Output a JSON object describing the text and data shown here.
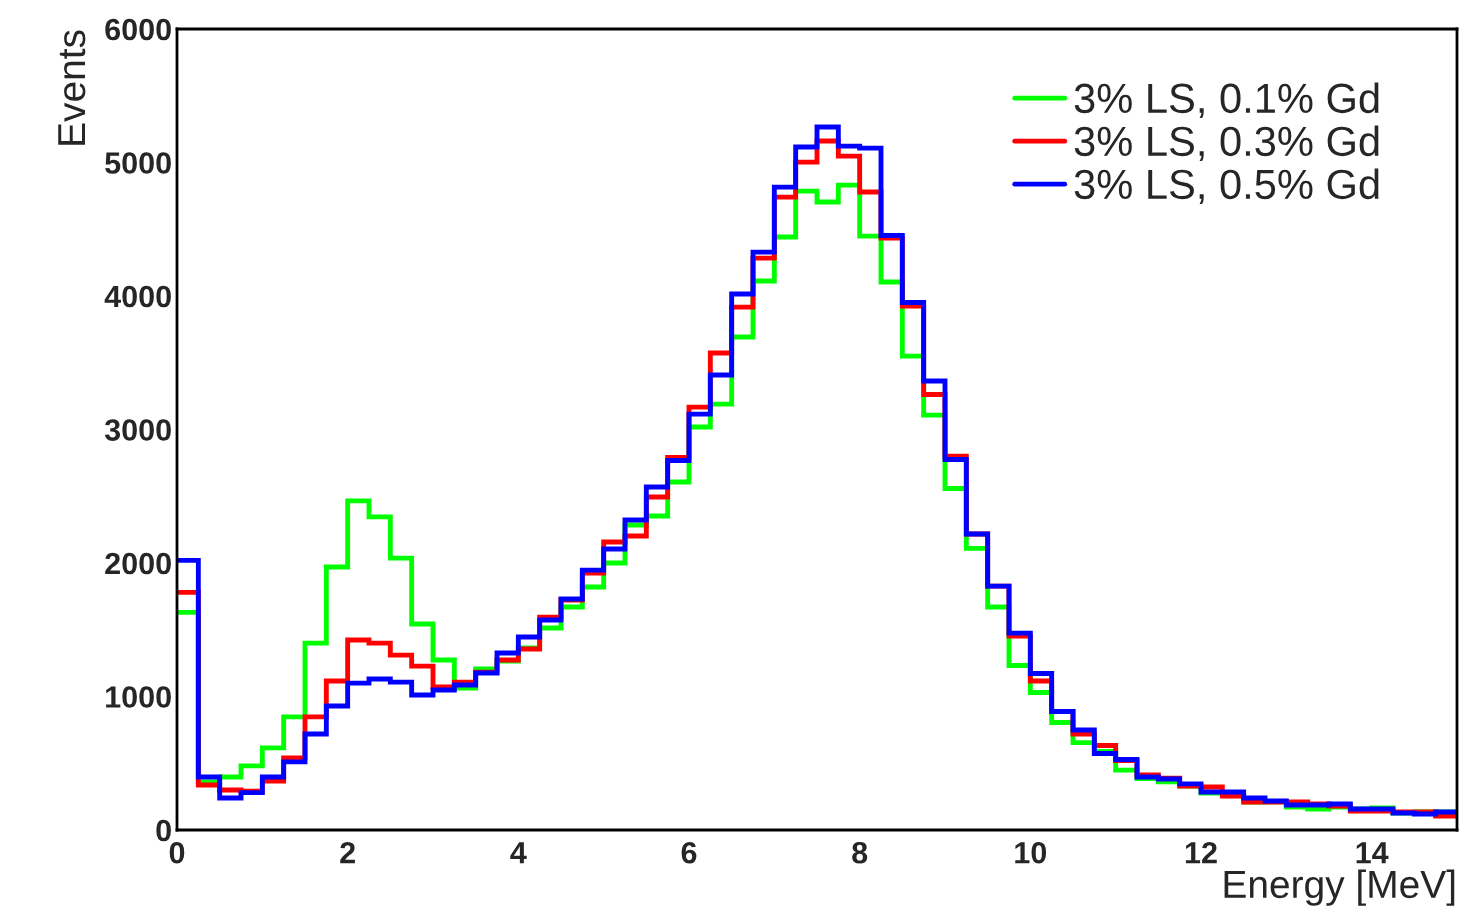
{
  "chart_data": {
    "type": "histogram",
    "xlabel": "Energy [MeV]",
    "ylabel": "Events",
    "bins": [
      0,
      0.25,
      0.5,
      0.75,
      1,
      1.25,
      1.5,
      1.75,
      2,
      2.25,
      2.5,
      2.75,
      3,
      3.25,
      3.5,
      3.75,
      4,
      4.25,
      4.5,
      4.75,
      5,
      5.25,
      5.5,
      5.75,
      6,
      6.25,
      6.5,
      6.75,
      7,
      7.25,
      7.5,
      7.75,
      8,
      8.25,
      8.5,
      8.75,
      9,
      9.25,
      9.5,
      9.75,
      10,
      10.25,
      10.5,
      10.75,
      11,
      11.25,
      11.5,
      11.75,
      12,
      12.25,
      12.5,
      12.75,
      13,
      13.25,
      13.5,
      13.75,
      14,
      14.25,
      14.5,
      14.75,
      15
    ],
    "series": [
      {
        "name": "3% LS, 0.1% Gd",
        "color": "#00ff00",
        "values": [
          1630,
          360,
          397,
          480,
          615,
          847,
          1400,
          1970,
          2465,
          2345,
          2037,
          1543,
          1273,
          1063,
          1206,
          1266,
          1363,
          1513,
          1670,
          1820,
          2000,
          2285,
          2352,
          2607,
          3019,
          3190,
          3693,
          4112,
          4442,
          4786,
          4704,
          4831,
          4449,
          4105,
          3550,
          3108,
          2558,
          2110,
          1670,
          1232,
          1030,
          805,
          655,
          588,
          449,
          385,
          360,
          330,
          277,
          262,
          210,
          212,
          172,
          157,
          172,
          157,
          165,
          127,
          135,
          135
        ]
      },
      {
        "name": "3% LS, 0.3% Gd",
        "color": "#ff0000",
        "values": [
          1780,
          337,
          300,
          290,
          367,
          540,
          847,
          1116,
          1423,
          1400,
          1310,
          1228,
          1071,
          1108,
          1183,
          1273,
          1356,
          1595,
          1723,
          1925,
          2157,
          2202,
          2494,
          2790,
          3168,
          3573,
          3917,
          4284,
          4741,
          5003,
          5161,
          5048,
          4779,
          4434,
          3925,
          3262,
          2801,
          2217,
          1827,
          1453,
          1116,
          888,
          719,
          633,
          520,
          412,
          389,
          330,
          322,
          255,
          210,
          210,
          210,
          195,
          180,
          142,
          142,
          135,
          135,
          105
        ]
      },
      {
        "name": "3% LS, 0.5% Gd",
        "color": "#0000ff",
        "values": [
          2020,
          397,
          240,
          280,
          397,
          510,
          719,
          929,
          1100,
          1131,
          1108,
          1011,
          1049,
          1086,
          1176,
          1326,
          1446,
          1573,
          1730,
          1947,
          2105,
          2322,
          2569,
          2768,
          3115,
          3408,
          4015,
          4329,
          4816,
          5116,
          5266,
          5123,
          5108,
          4453,
          3951,
          3363,
          2775,
          2217,
          1827,
          1475,
          1172,
          888,
          749,
          573,
          528,
          397,
          382,
          345,
          285,
          285,
          240,
          217,
          187,
          187,
          195,
          157,
          157,
          127,
          120,
          135
        ]
      }
    ],
    "xlim": [
      0,
      15
    ],
    "xticks": [
      0,
      2,
      4,
      6,
      8,
      10,
      12,
      14
    ],
    "ylim": [
      0,
      6000
    ],
    "yticks": [
      0,
      1000,
      2000,
      3000,
      4000,
      5000,
      6000
    ],
    "grid": false,
    "legend": "top right"
  }
}
